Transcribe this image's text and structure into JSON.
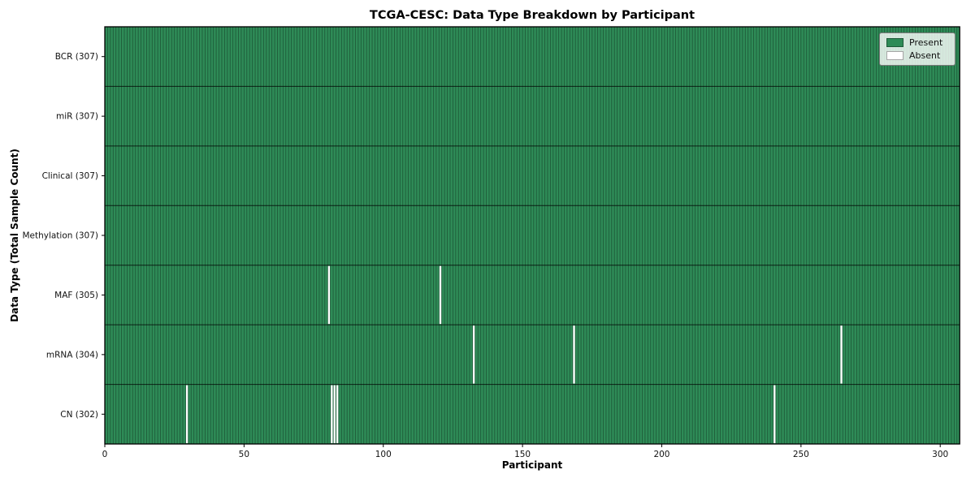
{
  "chart_data": {
    "type": "heatmap",
    "title": "TCGA-CESC: Data Type Breakdown by Participant",
    "xlabel": "Participant",
    "ylabel": "Data Type (Total Sample Count)",
    "n_participants": 307,
    "x_ticks": [
      0,
      50,
      100,
      150,
      200,
      250,
      300
    ],
    "x_range": [
      0,
      307
    ],
    "grid": false,
    "legend_position": "upper right",
    "rows": [
      {
        "data_type": "BCR",
        "label": "BCR (307)",
        "total": 307,
        "absent_participants": []
      },
      {
        "data_type": "miR",
        "label": "miR (307)",
        "total": 307,
        "absent_participants": []
      },
      {
        "data_type": "Clinical",
        "label": "Clinical (307)",
        "total": 307,
        "absent_participants": []
      },
      {
        "data_type": "Methylation",
        "label": "Methylation (307)",
        "total": 307,
        "absent_participants": []
      },
      {
        "data_type": "MAF",
        "label": "MAF (305)",
        "total": 305,
        "absent_participants": [
          80,
          120
        ]
      },
      {
        "data_type": "mRNA",
        "label": "mRNA (304)",
        "total": 304,
        "absent_participants": [
          132,
          168,
          264
        ]
      },
      {
        "data_type": "CN",
        "label": "CN (302)",
        "total": 302,
        "absent_participants": [
          29,
          81,
          82,
          83,
          240
        ]
      }
    ],
    "legend": [
      {
        "label": "Present",
        "color": "#2e8b57"
      },
      {
        "label": "Absent",
        "color": "#ffffff"
      }
    ],
    "colors": {
      "present": "#2e8b57",
      "absent": "#ffffff",
      "figure_background": "#ffffff"
    }
  }
}
